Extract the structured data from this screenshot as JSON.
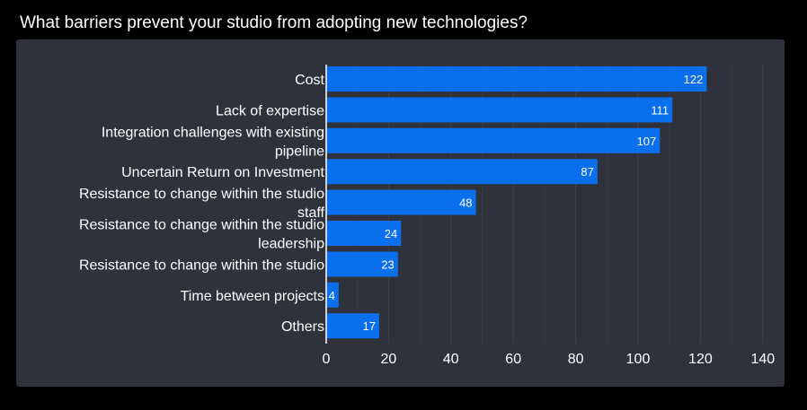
{
  "chart_data": {
    "type": "bar",
    "orientation": "horizontal",
    "title": "What barriers prevent your studio from adopting new technologies?",
    "categories": [
      "Cost",
      "Lack of expertise",
      "Integration challenges with existing pipeline",
      "Uncertain Return on Investment",
      "Resistance to change within the studio staff",
      "Resistance to change within the studio leadership",
      "Resistance to change within the studio",
      "Time between projects",
      "Others"
    ],
    "values": [
      122,
      111,
      107,
      87,
      48,
      24,
      23,
      4,
      17
    ],
    "xlim": [
      0,
      140
    ],
    "xticks": [
      0,
      20,
      40,
      60,
      80,
      100,
      120,
      140
    ],
    "grid": true,
    "xlabel": "",
    "ylabel": ""
  },
  "colors": {
    "bar": "#0a6fec",
    "panel": "#2f323b",
    "background": "#000000",
    "grid": "#3d414b",
    "axis": "#ffffff"
  }
}
